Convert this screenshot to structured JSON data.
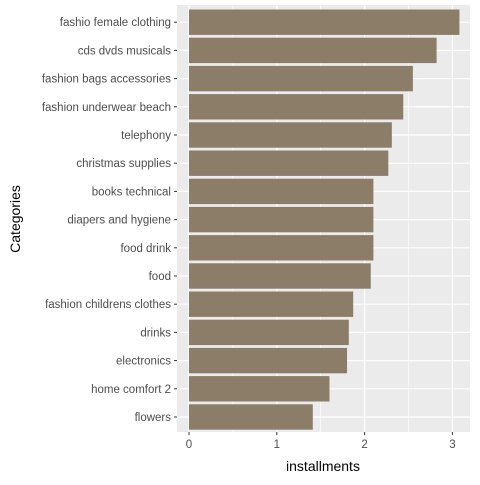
{
  "chart_data": {
    "type": "bar",
    "orientation": "horizontal",
    "xlabel": "installments",
    "ylabel": "Categories",
    "xlim": [
      0,
      3.2
    ],
    "xticks": [
      0,
      1,
      2,
      3
    ],
    "grid": true,
    "bar_color": "#8B7D68",
    "panel_background": "#EBEBEB",
    "gridline_color": "#FFFFFF",
    "categories": [
      "fashio female clothing",
      "cds dvds musicals",
      "fashion bags accessories",
      "fashion underwear beach",
      "telephony",
      "christmas supplies",
      "books technical",
      "diapers and hygiene",
      "food drink",
      "food",
      "fashion childrens clothes",
      "drinks",
      "electronics",
      "home comfort 2",
      "flowers"
    ],
    "values": [
      3.08,
      2.82,
      2.55,
      2.44,
      2.31,
      2.27,
      2.1,
      2.1,
      2.1,
      2.07,
      1.87,
      1.82,
      1.8,
      1.6,
      1.41
    ]
  }
}
